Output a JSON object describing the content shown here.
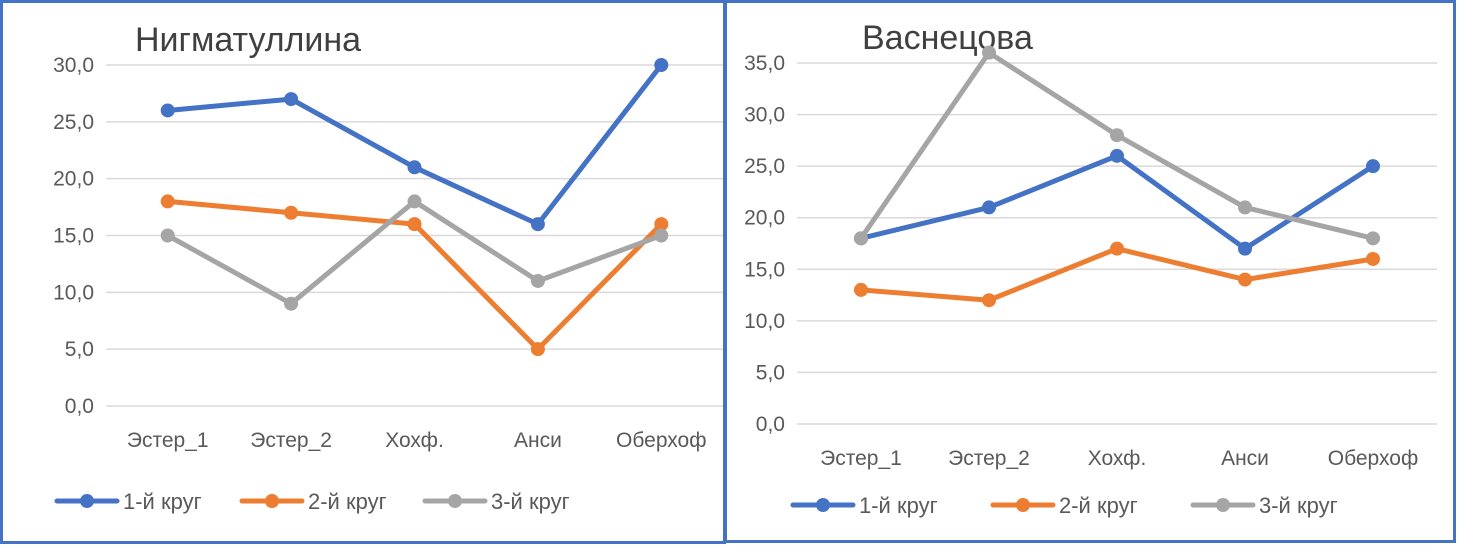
{
  "chart_data": [
    {
      "type": "line",
      "title": "Нигматуллина",
      "categories": [
        "Эстер_1",
        "Эстер_2",
        "Хохф.",
        "Анси",
        "Оберхоф"
      ],
      "series": [
        {
          "name": "1-й круг",
          "color": "#4472c4",
          "values": [
            26,
            27,
            21,
            16,
            30
          ]
        },
        {
          "name": "2-й круг",
          "color": "#ed7d31",
          "values": [
            18,
            17,
            16,
            5,
            16
          ]
        },
        {
          "name": "3-й круг",
          "color": "#a5a5a5",
          "values": [
            15,
            9,
            18,
            11,
            15
          ]
        }
      ],
      "ylim": [
        0,
        30
      ],
      "yticks": [
        "0,0",
        "5,0",
        "10,0",
        "15,0",
        "20,0",
        "25,0",
        "30,0"
      ],
      "grid": true,
      "legend": "bottom"
    },
    {
      "type": "line",
      "title": "Васнецова",
      "categories": [
        "Эстер_1",
        "Эстер_2",
        "Хохф.",
        "Анси",
        "Оберхоф"
      ],
      "series": [
        {
          "name": "1-й круг",
          "color": "#4472c4",
          "values": [
            18,
            21,
            26,
            17,
            25
          ]
        },
        {
          "name": "2-й круг",
          "color": "#ed7d31",
          "values": [
            13,
            12,
            17,
            14,
            16
          ]
        },
        {
          "name": "3-й круг",
          "color": "#a5a5a5",
          "values": [
            18,
            36,
            28,
            21,
            18
          ]
        }
      ],
      "ylim": [
        0,
        35
      ],
      "yticks": [
        "0,0",
        "5,0",
        "10,0",
        "15,0",
        "20,0",
        "25,0",
        "30,0",
        "35,0"
      ],
      "grid": true,
      "legend": "bottom"
    }
  ]
}
